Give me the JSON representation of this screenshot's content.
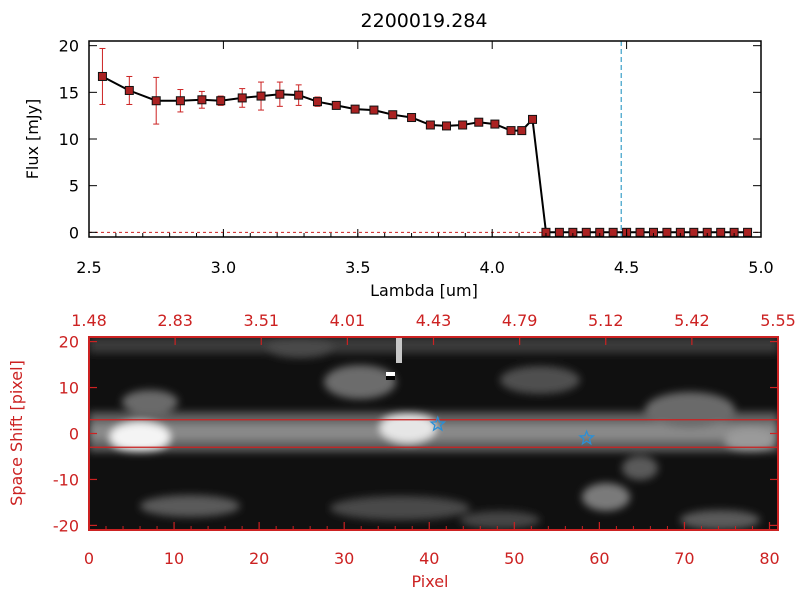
{
  "chart_data": [
    {
      "type": "line",
      "title": "2200019.284",
      "xlabel": "Lambda [um]",
      "ylabel": "Flux [mJy]",
      "xlim": [
        2.5,
        5.0
      ],
      "ylim": [
        -0.5,
        20.5
      ],
      "xticks": [
        2.5,
        3.0,
        3.5,
        4.0,
        4.5,
        5.0
      ],
      "xtick_labels": [
        "2.5",
        "3.0",
        "3.5",
        "4.0",
        "4.5",
        "5.0"
      ],
      "yticks": [
        0,
        5,
        10,
        15,
        20
      ],
      "ytick_labels": [
        "0",
        "5",
        "10",
        "15",
        "20"
      ],
      "reference_line_x": 4.48,
      "colors": {
        "line": "#000000",
        "marker": "#aa2222",
        "errorbar": "#cc2222",
        "reference_line": "#3aa0c8",
        "zero_line": "#cc2222"
      },
      "series": [
        {
          "x": [
            2.55,
            2.65,
            2.75,
            2.84,
            2.92,
            2.99,
            3.07,
            3.14,
            3.21,
            3.28,
            3.35,
            3.42,
            3.49,
            3.56,
            3.63,
            3.7,
            3.77,
            3.83,
            3.89,
            3.95,
            4.01,
            4.07,
            4.11,
            4.15,
            4.2,
            4.25,
            4.3,
            4.35,
            4.4,
            4.45,
            4.5,
            4.55,
            4.6,
            4.65,
            4.7,
            4.75,
            4.8,
            4.85,
            4.9,
            4.95
          ],
          "y": [
            16.7,
            15.2,
            14.1,
            14.1,
            14.2,
            14.1,
            14.4,
            14.6,
            14.8,
            14.7,
            14.0,
            13.6,
            13.2,
            13.1,
            12.6,
            12.3,
            11.5,
            11.4,
            11.5,
            11.8,
            11.6,
            10.9,
            10.9,
            12.1,
            0.0,
            0.0,
            0.0,
            0.0,
            0.0,
            0.0,
            0.0,
            0.0,
            0.0,
            0.0,
            0.0,
            0.0,
            0.0,
            0.0,
            0.0,
            0.0
          ],
          "yerr": [
            3.0,
            1.5,
            2.5,
            1.2,
            0.9,
            0.5,
            1.0,
            1.5,
            1.3,
            1.1,
            0.5,
            0.3,
            0.3,
            0.3,
            0.3,
            0.4,
            0.2,
            0.2,
            0.2,
            0.2,
            0.2,
            0.3,
            0.2,
            0.3,
            0.1,
            0.1,
            0.1,
            0.1,
            0.1,
            0.1,
            0.1,
            0.1,
            0.1,
            0.1,
            0.1,
            0.1,
            0.1,
            0.1,
            0.1,
            0.1
          ]
        }
      ]
    },
    {
      "type": "heatmap",
      "xlabel": "Pixel",
      "ylabel": "Space Shift [pixel]",
      "xlim": [
        0,
        81
      ],
      "ylim": [
        -21,
        21
      ],
      "xticks": [
        0,
        10,
        20,
        30,
        40,
        50,
        60,
        70,
        80
      ],
      "xtick_labels": [
        "0",
        "10",
        "20",
        "30",
        "40",
        "50",
        "60",
        "70",
        "80"
      ],
      "yticks": [
        -20,
        -10,
        0,
        10,
        20
      ],
      "ytick_labels": [
        "-20",
        "-10",
        "0",
        "10",
        "20"
      ],
      "top_axis_labels": [
        "1.48",
        "2.83",
        "3.51",
        "4.01",
        "4.43",
        "4.79",
        "5.12",
        "5.42",
        "5.55"
      ],
      "aperture_lines_y": [
        3,
        -3
      ],
      "markers": [
        {
          "symbol": "star",
          "x": 41,
          "y": 2
        },
        {
          "symbol": "star",
          "x": 58.5,
          "y": -1
        }
      ],
      "colors": {
        "axes": "#cc2222",
        "aperture": "#cc2222",
        "marker": "#2a8fd6",
        "colormap": "grayscale"
      }
    }
  ]
}
